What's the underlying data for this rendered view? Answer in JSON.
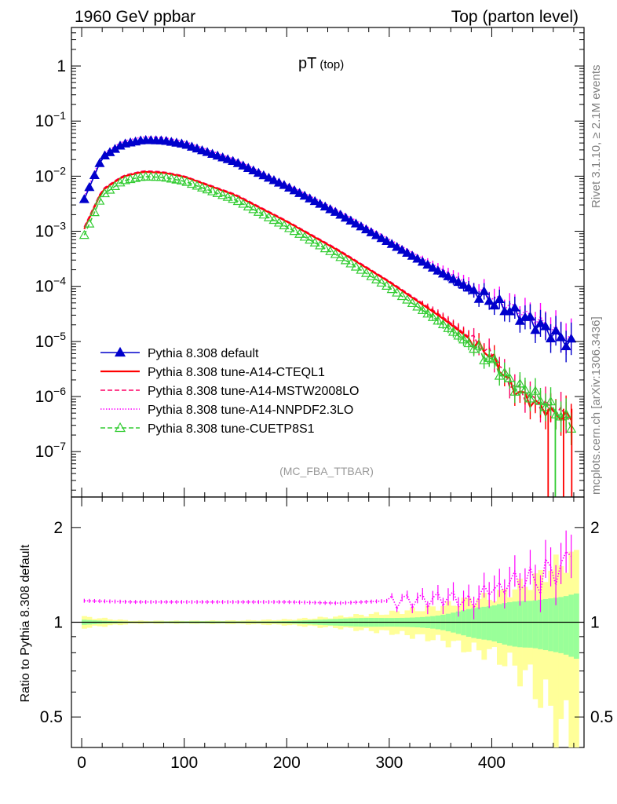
{
  "header": {
    "left": "1960 GeV ppbar",
    "right": "Top (parton level)"
  },
  "side_labels": {
    "rivet": "Rivet 3.1.10, ≥ 2.1M events",
    "mcplots": "mcplots.cern.ch [arXiv:1306.3436]"
  },
  "main_title": {
    "text": "pT",
    "sub": "(top)"
  },
  "analysis_tag": "(MC_FBA_TTBAR)",
  "ratio_ylabel": "Ratio to Pythia 8.308 default",
  "legend": [
    {
      "label": "Pythia 8.308 default",
      "color": "#0000cc",
      "style": "solid",
      "marker": "triangle-filled"
    },
    {
      "label": "Pythia 8.308 tune-A14-CTEQL1",
      "color": "#ff0000",
      "style": "solid",
      "marker": "none"
    },
    {
      "label": "Pythia 8.308 tune-A14-MSTW2008LO",
      "color": "#ff0066",
      "style": "dashed",
      "marker": "none"
    },
    {
      "label": "Pythia 8.308 tune-A14-NNPDF2.3LO",
      "color": "#ff00ff",
      "style": "dotted",
      "marker": "none"
    },
    {
      "label": "Pythia 8.308 tune-CUETP8S1",
      "color": "#33cc33",
      "style": "dashed",
      "marker": "triangle-open"
    }
  ],
  "chart_data": {
    "type": "line",
    "xlim": [
      -10,
      490
    ],
    "main": {
      "yscale": "log",
      "ylim": [
        1.5e-08,
        5
      ],
      "ytick_labels": [
        {
          "base": "1",
          "exp": ""
        },
        {
          "base": "10",
          "exp": "−1"
        },
        {
          "base": "10",
          "exp": "−2"
        },
        {
          "base": "10",
          "exp": "−3"
        },
        {
          "base": "10",
          "exp": "−4"
        },
        {
          "base": "10",
          "exp": "−5"
        },
        {
          "base": "10",
          "exp": "−6"
        },
        {
          "base": "10",
          "exp": "−7"
        }
      ],
      "series": [
        {
          "name": "Pythia 8.308 default",
          "x": [
            2.5,
            20,
            40,
            60,
            80,
            100,
            150,
            200,
            250,
            300,
            350,
            400,
            450,
            480
          ],
          "y": [
            0.0038,
            0.022,
            0.038,
            0.045,
            0.044,
            0.038,
            0.018,
            0.0065,
            0.0021,
            0.00062,
            0.00018,
            5.5e-05,
            1.8e-05,
            8.5e-06
          ]
        },
        {
          "name": "Pythia 8.308 tune-A14-CTEQL1",
          "x": [
            2.5,
            20,
            40,
            60,
            80,
            100,
            150,
            200,
            250,
            300,
            350,
            400,
            420,
            440,
            460,
            480
          ],
          "y": [
            0.0011,
            0.0055,
            0.0098,
            0.012,
            0.0115,
            0.0098,
            0.0045,
            0.0015,
            0.00045,
            0.00012,
            2.8e-05,
            5.5e-06,
            1.5e-06,
            8e-07,
            5e-07,
            4e-07
          ]
        },
        {
          "name": "Pythia 8.308 tune-A14-MSTW2008LO",
          "x": [
            2.5,
            20,
            40,
            60,
            80,
            100,
            150,
            200,
            250,
            300,
            350,
            400,
            420,
            440,
            460,
            480
          ],
          "y": [
            0.0012,
            0.0058,
            0.0102,
            0.0125,
            0.012,
            0.0101,
            0.0047,
            0.00155,
            0.00047,
            0.000125,
            3e-05,
            5.8e-06,
            1.6e-06,
            9e-07,
            6e-07,
            4e-07
          ]
        },
        {
          "name": "Pythia 8.308 tune-A14-NNPDF2.3LO",
          "x": [
            2.5,
            20,
            40,
            60,
            80,
            100,
            150,
            200,
            250,
            300,
            350,
            400,
            450,
            480
          ],
          "y": [
            0.0042,
            0.025,
            0.043,
            0.052,
            0.05,
            0.043,
            0.02,
            0.0072,
            0.0024,
            0.00072,
            0.00021,
            6.5e-05,
            2.2e-05,
            1e-05
          ]
        },
        {
          "name": "Pythia 8.308 tune-CUETP8S1",
          "x": [
            2.5,
            20,
            40,
            60,
            80,
            100,
            150,
            200,
            250,
            300,
            350,
            400,
            420,
            440,
            460,
            480
          ],
          "y": [
            0.00085,
            0.0045,
            0.0082,
            0.0098,
            0.0095,
            0.0081,
            0.0037,
            0.0012,
            0.00036,
            9.5e-05,
            2.2e-05,
            4.5e-06,
            1.7e-06,
            1.1e-06,
            6e-07,
            3e-07
          ]
        }
      ]
    },
    "ratio": {
      "yscale": "log",
      "ylim": [
        0.4,
        2.5
      ],
      "yticks": [
        0.5,
        1,
        2
      ],
      "ytick_labels": [
        "0.5",
        "1",
        "2"
      ],
      "band_x": [
        0,
        50,
        100,
        150,
        200,
        250,
        300,
        350,
        380,
        400,
        420,
        440,
        460,
        480
      ],
      "band_yellow": [
        0.04,
        0.01,
        0.01,
        0.012,
        0.02,
        0.04,
        0.07,
        0.12,
        0.18,
        0.2,
        0.27,
        0.35,
        0.5,
        0.6
      ],
      "band_green": [
        0.02,
        0.005,
        0.005,
        0.006,
        0.01,
        0.02,
        0.035,
        0.06,
        0.09,
        0.1,
        0.14,
        0.18,
        0.25,
        0.3
      ],
      "series": [
        {
          "name": "Pythia 8.308 tune-A14-NNPDF2.3LO",
          "x": [
            2.5,
            50,
            100,
            150,
            200,
            250,
            300,
            340,
            360,
            380,
            400,
            410,
            420,
            430,
            440,
            450,
            455,
            460,
            470,
            475,
            480
          ],
          "y": [
            1.17,
            1.16,
            1.16,
            1.16,
            1.16,
            1.15,
            1.17,
            1.18,
            1.2,
            1.15,
            1.3,
            1.25,
            1.4,
            1.3,
            1.45,
            1.2,
            1.8,
            1.3,
            1.5,
            1.95,
            1.4
          ]
        }
      ]
    },
    "xticks": [
      0,
      100,
      200,
      300,
      400
    ],
    "xtick_labels": [
      "0",
      "100",
      "200",
      "300",
      "400"
    ]
  }
}
